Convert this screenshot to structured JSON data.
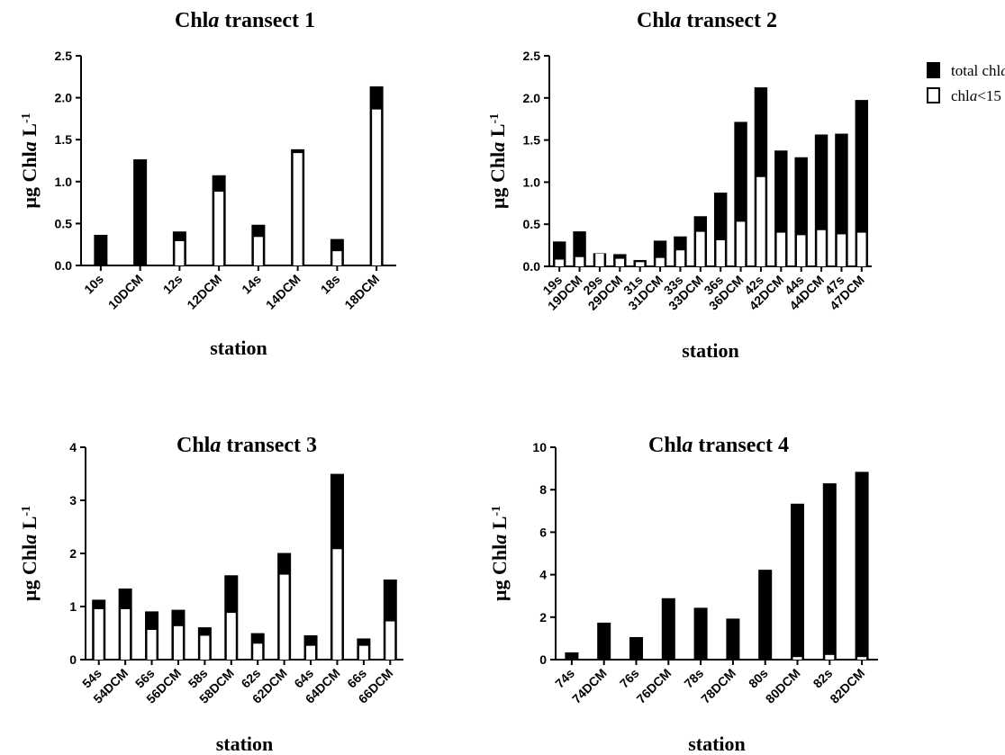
{
  "legend": [
    {
      "label_pre": "total chl",
      "label_italic": "a",
      "label_post": "",
      "swatch": "#000000"
    },
    {
      "label_pre": "chl",
      "label_italic": "a",
      "label_post": "<15",
      "swatch": "#ffffff"
    }
  ],
  "colors": {
    "total": "#000000",
    "small": "#ffffff"
  },
  "chart_data": [
    {
      "type": "bar",
      "title_pre": "Chl",
      "title_italic": "a",
      "title_post": " transect 1",
      "xlabel": "station",
      "ylabel_main": "µg Chl",
      "ylabel_italic": "a",
      "ylabel_unit": " L",
      "ylabel_sup": "-1",
      "ylim": [
        0,
        2.5
      ],
      "yticks": [
        "0.0",
        "0.5",
        "1.0",
        "1.5",
        "2.0",
        "2.5"
      ],
      "categories": [
        "10s",
        "10DCM",
        "12s",
        "12DCM",
        "14s",
        "14DCM",
        "18s",
        "18DCM"
      ],
      "series": [
        {
          "name": "total chla",
          "values": [
            0.36,
            1.26,
            0.4,
            1.07,
            0.48,
            1.38,
            0.31,
            2.13
          ]
        },
        {
          "name": "chla<15",
          "values": [
            0.0,
            0.0,
            0.29,
            0.88,
            0.34,
            1.34,
            0.17,
            1.86
          ]
        }
      ]
    },
    {
      "type": "bar",
      "title_pre": "Chl",
      "title_italic": "a",
      "title_post": " transect 2",
      "xlabel": "station",
      "ylabel_main": "µg Chl",
      "ylabel_italic": "a",
      "ylabel_unit": " L",
      "ylabel_sup": "-1",
      "ylim": [
        0,
        2.5
      ],
      "yticks": [
        "0.0",
        "0.5",
        "1.0",
        "1.5",
        "2.0",
        "2.5"
      ],
      "categories": [
        "19s",
        "19DCM",
        "29s",
        "29DCM",
        "31s",
        "31DCM",
        "33s",
        "33DCM",
        "36s",
        "36DCM",
        "42s",
        "42DCM",
        "44s",
        "44DCM",
        "47s",
        "47DCM"
      ],
      "series": [
        {
          "name": "total chla",
          "values": [
            0.29,
            0.41,
            0.15,
            0.14,
            0.07,
            0.3,
            0.35,
            0.59,
            0.87,
            1.71,
            2.12,
            1.37,
            1.29,
            1.56,
            1.57,
            1.97
          ]
        },
        {
          "name": "chla<15",
          "values": [
            0.08,
            0.11,
            0.15,
            0.09,
            0.05,
            0.1,
            0.19,
            0.41,
            0.31,
            0.53,
            1.06,
            0.4,
            0.37,
            0.43,
            0.38,
            0.4
          ]
        }
      ]
    },
    {
      "type": "bar",
      "title_pre": "Chl",
      "title_italic": "a",
      "title_post": " transect 3",
      "xlabel": "station",
      "ylabel_main": "µg Chl",
      "ylabel_italic": "a",
      "ylabel_unit": " L",
      "ylabel_sup": "-1",
      "ylim": [
        0,
        4
      ],
      "yticks": [
        "0",
        "1",
        "2",
        "3",
        "4"
      ],
      "categories": [
        "54s",
        "54DCM",
        "56s",
        "56DCM",
        "58s",
        "58DCM",
        "62s",
        "62DCM",
        "64s",
        "64DCM",
        "66s",
        "66DCM"
      ],
      "series": [
        {
          "name": "total chla",
          "values": [
            1.12,
            1.33,
            0.9,
            0.93,
            0.6,
            1.58,
            0.49,
            2.0,
            0.45,
            3.49,
            0.39,
            1.5
          ]
        },
        {
          "name": "chla<15",
          "values": [
            0.95,
            0.95,
            0.56,
            0.63,
            0.45,
            0.88,
            0.3,
            1.6,
            0.26,
            2.08,
            0.26,
            0.72
          ]
        }
      ]
    },
    {
      "type": "bar",
      "title_pre": "Chl",
      "title_italic": "a",
      "title_post": " transect 4",
      "xlabel": "station",
      "ylabel_main": "µg Chl",
      "ylabel_italic": "a",
      "ylabel_unit": " L",
      "ylabel_sup": "-1",
      "ylim": [
        0,
        10
      ],
      "yticks": [
        "0",
        "2",
        "4",
        "6",
        "8",
        "10"
      ],
      "categories": [
        "74s",
        "74DCM",
        "76s",
        "76DCM",
        "78s",
        "78DCM",
        "80s",
        "80DCM",
        "82s",
        "82DCM"
      ],
      "series": [
        {
          "name": "total chla",
          "values": [
            0.32,
            1.72,
            1.04,
            2.87,
            2.42,
            1.91,
            4.21,
            7.32,
            8.28,
            8.82
          ]
        },
        {
          "name": "chla<15",
          "values": [
            0.0,
            0.0,
            0.0,
            0.0,
            0.0,
            0.0,
            0.0,
            0.12,
            0.22,
            0.12
          ]
        }
      ]
    }
  ]
}
